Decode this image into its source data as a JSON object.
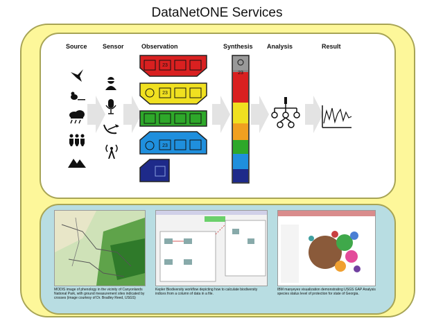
{
  "title": "DataNetONE Services",
  "columns": {
    "source": "Source",
    "sensor": "Sensor",
    "observation": "Observation",
    "synthesis": "Synthesis",
    "analysis": "Analysis",
    "result": "Result"
  },
  "badge_number": "23",
  "colors": {
    "outer": "#fdf79a",
    "bottom_panel": "#b8dde2",
    "red": "#d92020",
    "yellow": "#f0e020",
    "green": "#2ea82a",
    "blue": "#1f8fdd",
    "navy": "#1e2a8a",
    "arrow": "#e3e3e3"
  },
  "source_icons": [
    "bird-icon",
    "duck-icon",
    "rain-cloud-icon",
    "people-icon",
    "mountain-icon"
  ],
  "sensor_icons": [
    "person-icon",
    "microphone-icon",
    "satellite-dish-icon",
    "antenna-icon"
  ],
  "captions": {
    "modis": "MODIS image of phenology in the vicinity of Canyonlands National Park, with ground measurement sites indicated by crosses (image courtesy of Dr. Bradley Reed, USGS)",
    "kepler": "Kepler Biodiversity workflow depicting how to calculate biodiversity indices from a column of data in a file.",
    "ibm": "IBM manyeyes visualization demonstrating USGS GAP Analysis species status level of protection for state of Georgia."
  }
}
